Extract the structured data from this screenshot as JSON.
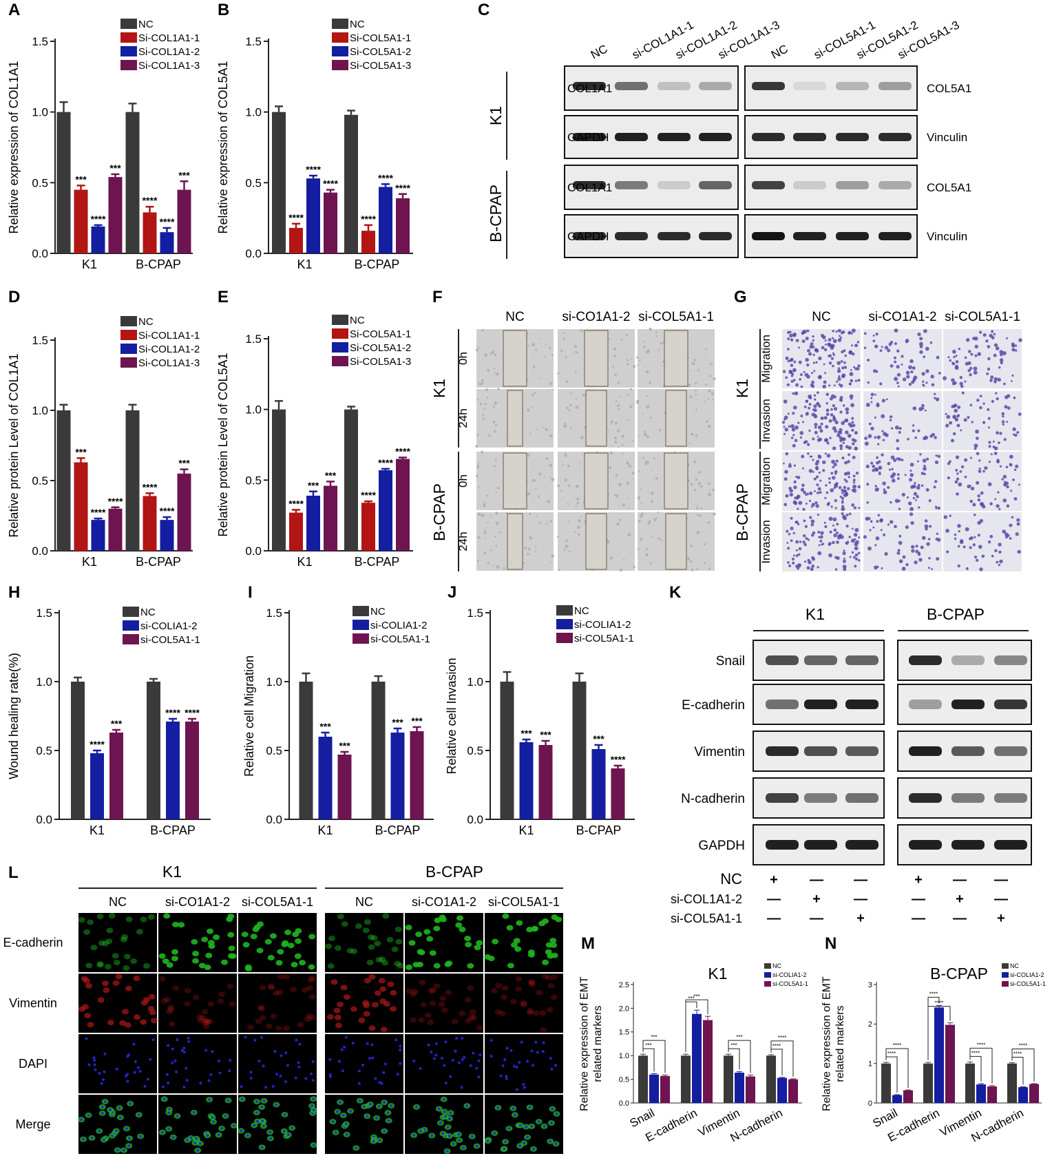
{
  "colors": {
    "nc": "#3a3a3a",
    "red": "#b31414",
    "blue": "#141ea0",
    "purple": "#6e1450",
    "bg_micro": "#cfcfcf",
    "fluor_green": "#1fb51f",
    "fluor_red": "#b01818",
    "fluor_blue": "#2828e0"
  },
  "panels": {
    "A": "A",
    "B": "B",
    "C": "C",
    "D": "D",
    "E": "E",
    "F": "F",
    "G": "G",
    "H": "H",
    "I": "I",
    "J": "J",
    "K": "K",
    "L": "L",
    "M": "M",
    "N": "N"
  },
  "chart_data": [
    {
      "id": "A",
      "type": "bar",
      "categories": [
        "K1",
        "B-CPAP"
      ],
      "ylabel": "Relative expression of COL1A1",
      "ylim": [
        0,
        1.5
      ],
      "yticks": [
        "0.0",
        "0.5",
        "1.0",
        "1.5"
      ],
      "ytick_values": [
        0,
        0.5,
        1.0,
        1.5
      ],
      "legend": "top-right",
      "series": [
        {
          "name": "NC",
          "color": "nc",
          "values": [
            1.0,
            1.0
          ],
          "err": [
            0.07,
            0.06
          ],
          "sig": [
            "",
            ""
          ]
        },
        {
          "name": "Si-COL1A1-1",
          "color": "red",
          "values": [
            0.45,
            0.29
          ],
          "err": [
            0.03,
            0.04
          ],
          "sig": [
            "***",
            "****"
          ]
        },
        {
          "name": "Si-COL1A1-2",
          "color": "blue",
          "values": [
            0.19,
            0.15
          ],
          "err": [
            0.01,
            0.03
          ],
          "sig": [
            "****",
            "****"
          ]
        },
        {
          "name": "Si-COL1A1-3",
          "color": "purple",
          "values": [
            0.54,
            0.45
          ],
          "err": [
            0.02,
            0.06
          ],
          "sig": [
            "***",
            "***"
          ]
        }
      ]
    },
    {
      "id": "B",
      "type": "bar",
      "categories": [
        "K1",
        "B-CPAP"
      ],
      "ylabel": "Relative expression of COL5A1",
      "ylim": [
        0,
        1.5
      ],
      "yticks": [
        "0.0",
        "0.5",
        "1.0",
        "1.5"
      ],
      "ytick_values": [
        0,
        0.5,
        1.0,
        1.5
      ],
      "legend": "top-right",
      "series": [
        {
          "name": "NC",
          "color": "nc",
          "values": [
            1.0,
            0.98
          ],
          "err": [
            0.04,
            0.03
          ],
          "sig": [
            "",
            ""
          ]
        },
        {
          "name": "Si-COL5A1-1",
          "color": "red",
          "values": [
            0.18,
            0.16
          ],
          "err": [
            0.03,
            0.04
          ],
          "sig": [
            "****",
            "****"
          ]
        },
        {
          "name": "Si-COL5A1-2",
          "color": "blue",
          "values": [
            0.53,
            0.47
          ],
          "err": [
            0.02,
            0.02
          ],
          "sig": [
            "****",
            "****"
          ]
        },
        {
          "name": "Si-COL5A1-3",
          "color": "purple",
          "values": [
            0.43,
            0.39
          ],
          "err": [
            0.02,
            0.03
          ],
          "sig": [
            "****",
            "****"
          ]
        }
      ]
    },
    {
      "id": "D",
      "type": "bar",
      "categories": [
        "K1",
        "B-CPAP"
      ],
      "ylabel": "Relative protein Level of COL1A1",
      "ylim": [
        0,
        1.5
      ],
      "yticks": [
        "0.0",
        "0.5",
        "1.0",
        "1.5"
      ],
      "ytick_values": [
        0,
        0.5,
        1.0,
        1.5
      ],
      "legend": "top-right",
      "series": [
        {
          "name": "NC",
          "color": "nc",
          "values": [
            1.0,
            1.0
          ],
          "err": [
            0.04,
            0.04
          ],
          "sig": [
            "",
            ""
          ]
        },
        {
          "name": "Si-COL1A1-1",
          "color": "red",
          "values": [
            0.63,
            0.39
          ],
          "err": [
            0.03,
            0.02
          ],
          "sig": [
            "***",
            "****"
          ]
        },
        {
          "name": "Si-COL1A1-2",
          "color": "blue",
          "values": [
            0.22,
            0.22
          ],
          "err": [
            0.01,
            0.02
          ],
          "sig": [
            "****",
            "****"
          ]
        },
        {
          "name": "Si-COL1A1-3",
          "color": "purple",
          "values": [
            0.3,
            0.55
          ],
          "err": [
            0.01,
            0.03
          ],
          "sig": [
            "****",
            "***"
          ]
        }
      ]
    },
    {
      "id": "E",
      "type": "bar",
      "categories": [
        "K1",
        "B-CPAP"
      ],
      "ylabel": "Relative protein Level of COL5A1",
      "ylim": [
        0,
        1.5
      ],
      "yticks": [
        "0.0",
        "0.5",
        "1.0",
        "1.5"
      ],
      "ytick_values": [
        0,
        0.5,
        1.0,
        1.5
      ],
      "legend": "top-right",
      "series": [
        {
          "name": "NC",
          "color": "nc",
          "values": [
            1.0,
            1.0
          ],
          "err": [
            0.06,
            0.02
          ],
          "sig": [
            "",
            ""
          ]
        },
        {
          "name": "Si-COL5A1-1",
          "color": "red",
          "values": [
            0.27,
            0.34
          ],
          "err": [
            0.02,
            0.01
          ],
          "sig": [
            "****",
            "****"
          ]
        },
        {
          "name": "Si-COL5A1-2",
          "color": "blue",
          "values": [
            0.39,
            0.57
          ],
          "err": [
            0.03,
            0.01
          ],
          "sig": [
            "***",
            "****"
          ]
        },
        {
          "name": "Si-COL5A1-3",
          "color": "purple",
          "values": [
            0.46,
            0.65
          ],
          "err": [
            0.03,
            0.01
          ],
          "sig": [
            "***",
            "****"
          ]
        }
      ]
    },
    {
      "id": "H",
      "type": "bar",
      "categories": [
        "K1",
        "B-CPAP"
      ],
      "ylabel": "Wound healing rate(%)",
      "ylim": [
        0,
        1.5
      ],
      "yticks": [
        "0.0",
        "0.5",
        "1.0",
        "1.5"
      ],
      "ytick_values": [
        0,
        0.5,
        1.0,
        1.5
      ],
      "legend": "top-right",
      "series": [
        {
          "name": "NC",
          "color": "nc",
          "values": [
            1.0,
            1.0
          ],
          "err": [
            0.03,
            0.02
          ],
          "sig": [
            "",
            ""
          ]
        },
        {
          "name": "si-COLIA1-2",
          "color": "blue",
          "values": [
            0.48,
            0.71
          ],
          "err": [
            0.02,
            0.02
          ],
          "sig": [
            "****",
            "****"
          ]
        },
        {
          "name": "si-COL5A1-1",
          "color": "purple",
          "values": [
            0.63,
            0.71
          ],
          "err": [
            0.02,
            0.02
          ],
          "sig": [
            "***",
            "****"
          ]
        }
      ]
    },
    {
      "id": "I",
      "type": "bar",
      "categories": [
        "K1",
        "B-CPAP"
      ],
      "ylabel": "Relative cell Migration",
      "ylim": [
        0,
        1.5
      ],
      "yticks": [
        "0.0",
        "0.5",
        "1.0",
        "1.5"
      ],
      "ytick_values": [
        0,
        0.5,
        1.0,
        1.5
      ],
      "legend": "top-right",
      "series": [
        {
          "name": "NC",
          "color": "nc",
          "values": [
            1.0,
            1.0
          ],
          "err": [
            0.06,
            0.04
          ],
          "sig": [
            "",
            ""
          ]
        },
        {
          "name": "si-COLIA1-2",
          "color": "blue",
          "values": [
            0.6,
            0.63
          ],
          "err": [
            0.03,
            0.03
          ],
          "sig": [
            "***",
            "***"
          ]
        },
        {
          "name": "si-COL5A1-1",
          "color": "purple",
          "values": [
            0.47,
            0.64
          ],
          "err": [
            0.02,
            0.03
          ],
          "sig": [
            "***",
            "***"
          ]
        }
      ]
    },
    {
      "id": "J",
      "type": "bar",
      "categories": [
        "K1",
        "B-CPAP"
      ],
      "ylabel": "Relative cell Invasion",
      "ylim": [
        0,
        1.5
      ],
      "yticks": [
        "0.0",
        "0.5",
        "1.0",
        "1.5"
      ],
      "ytick_values": [
        0,
        0.5,
        1.0,
        1.5
      ],
      "legend": "top-right",
      "series": [
        {
          "name": "NC",
          "color": "nc",
          "values": [
            1.0,
            1.0
          ],
          "err": [
            0.07,
            0.06
          ],
          "sig": [
            "",
            ""
          ]
        },
        {
          "name": "si-COLIA1-2",
          "color": "blue",
          "values": [
            0.56,
            0.51
          ],
          "err": [
            0.02,
            0.03
          ],
          "sig": [
            "***",
            "***"
          ]
        },
        {
          "name": "si-COL5A1-1",
          "color": "purple",
          "values": [
            0.54,
            0.37
          ],
          "err": [
            0.03,
            0.02
          ],
          "sig": [
            "***",
            "****"
          ]
        }
      ]
    },
    {
      "id": "M",
      "type": "bar",
      "title": "K1",
      "categories": [
        "Snail",
        "E-cadherin",
        "Vimentin",
        "N-cadherin"
      ],
      "ylabel": "Relative expression of EMT related markers",
      "ylim": [
        0,
        2.5
      ],
      "yticks": [
        "0.0",
        "0.5",
        "1.0",
        "1.5",
        "2.0",
        "2.5"
      ],
      "ytick_values": [
        0,
        0.5,
        1.0,
        1.5,
        2.0,
        2.5
      ],
      "legend": "top-right",
      "brackets": [
        "***",
        "***"
      ],
      "series": [
        {
          "name": "NC",
          "color": "nc",
          "values": [
            1.0,
            1.0,
            1.0,
            1.0
          ],
          "err": [
            0.03,
            0.03,
            0.03,
            0.02
          ]
        },
        {
          "name": "si-COLIA1-2",
          "color": "blue",
          "values": [
            0.6,
            1.88,
            0.64,
            0.53
          ],
          "err": [
            0.02,
            0.08,
            0.02,
            0.01
          ]
        },
        {
          "name": "si-COL5A1-1",
          "color": "purple",
          "values": [
            0.57,
            1.75,
            0.56,
            0.5
          ],
          "err": [
            0.02,
            0.08,
            0.03,
            0.01
          ]
        }
      ],
      "bracket_labels": [
        [
          "***",
          "***"
        ],
        [
          "***",
          "***"
        ],
        [
          "***",
          "***"
        ],
        [
          "****",
          "****"
        ]
      ]
    },
    {
      "id": "N",
      "type": "bar",
      "title": "B-CPAP",
      "categories": [
        "Snail",
        "E-cadherin",
        "Vimentin",
        "N-cadherin"
      ],
      "ylabel": "Relative expression of EMT related markers",
      "ylim": [
        0,
        3
      ],
      "yticks": [
        "0",
        "1",
        "2",
        "3"
      ],
      "ytick_values": [
        0,
        1,
        2,
        3
      ],
      "legend": "top-right",
      "series": [
        {
          "name": "NC",
          "color": "nc",
          "values": [
            1.0,
            1.0,
            1.0,
            1.0
          ],
          "err": [
            0.03,
            0.03,
            0.04,
            0.02
          ]
        },
        {
          "name": "si-COLIA1-2",
          "color": "blue",
          "values": [
            0.2,
            2.42,
            0.47,
            0.4
          ],
          "err": [
            0.01,
            0.05,
            0.02,
            0.01
          ]
        },
        {
          "name": "si-COL5A1-1",
          "color": "purple",
          "values": [
            0.32,
            1.98,
            0.42,
            0.48
          ],
          "err": [
            0.01,
            0.05,
            0.02,
            0.01
          ]
        }
      ],
      "bracket_labels": [
        [
          "****",
          "****"
        ],
        [
          "****",
          "****"
        ],
        [
          "****",
          "****"
        ],
        [
          "****",
          "****"
        ]
      ]
    }
  ],
  "C": {
    "lanes_left": [
      "NC",
      "si-COL1A1-1",
      "si-COL1A1-2",
      "si-COL1A1-3"
    ],
    "lanes_right": [
      "NC",
      "si-COL5A1-1",
      "si-COL5A1-2",
      "si-COL5A1-3"
    ],
    "cell_k1": "K1",
    "cell_bcpap": "B-CPAP",
    "rows_left": [
      "COL1A1",
      "GAPDH",
      "COL1A1",
      "GAPDH"
    ],
    "rows_right": [
      "COL5A1",
      "Vinculin",
      "COL5A1",
      "Vinculin"
    ],
    "intensity_left": [
      [
        0.9,
        0.6,
        0.25,
        0.35
      ],
      [
        0.95,
        0.95,
        0.95,
        0.95
      ],
      [
        0.9,
        0.55,
        0.2,
        0.65
      ],
      [
        0.9,
        0.9,
        0.9,
        0.9
      ]
    ],
    "intensity_right": [
      [
        0.85,
        0.15,
        0.3,
        0.4
      ],
      [
        0.9,
        0.9,
        0.9,
        0.9
      ],
      [
        0.8,
        0.2,
        0.4,
        0.35
      ],
      [
        1.0,
        0.95,
        0.95,
        0.95
      ]
    ]
  },
  "F": {
    "cols": [
      "NC",
      "si-CO1A1-2",
      "si-COL5A1-1"
    ],
    "cell_k1": "K1",
    "cell_bcpap": "B-CPAP",
    "times": [
      "0h",
      "24h",
      "0h",
      "24h"
    ]
  },
  "G": {
    "cols": [
      "NC",
      "si-CO1A1-2",
      "si-COL5A1-1"
    ],
    "cell_k1": "K1",
    "cell_bcpap": "B-CPAP",
    "rows": [
      "Migration",
      "Invasion",
      "Migration",
      "Invasion"
    ],
    "density": [
      [
        1.0,
        0.45,
        0.5
      ],
      [
        0.9,
        0.35,
        0.45
      ],
      [
        0.9,
        0.55,
        0.45
      ],
      [
        0.8,
        0.4,
        0.35
      ]
    ]
  },
  "K": {
    "cell_k1": "K1",
    "cell_bcpap": "B-CPAP",
    "rows": [
      "Snail",
      "E-cadherin",
      "Vimentin",
      "N-cadherin",
      "GAPDH"
    ],
    "conditions": [
      "NC",
      "si-COL1A1-2",
      "si-COL5A1-1"
    ],
    "signs": [
      [
        "+",
        "—",
        "—"
      ],
      [
        "—",
        "+",
        "—"
      ],
      [
        "—",
        "—",
        "+"
      ]
    ],
    "intensity_k1": [
      [
        0.75,
        0.65,
        0.65
      ],
      [
        0.6,
        0.95,
        0.95
      ],
      [
        0.9,
        0.75,
        0.7
      ],
      [
        0.8,
        0.55,
        0.6
      ],
      [
        0.95,
        0.95,
        0.95
      ]
    ],
    "intensity_bcpap": [
      [
        0.9,
        0.35,
        0.5
      ],
      [
        0.4,
        0.95,
        0.85
      ],
      [
        0.95,
        0.7,
        0.6
      ],
      [
        0.9,
        0.55,
        0.55
      ],
      [
        0.95,
        0.95,
        0.95
      ]
    ]
  },
  "L": {
    "cell_k1": "K1",
    "cell_bcpap": "B-CPAP",
    "cols": [
      "NC",
      "si-CO1A1-2",
      "si-COL5A1-1",
      "NC",
      "si-CO1A1-2",
      "si-COL5A1-1"
    ],
    "rows": [
      "E-cadherin",
      "Vimentin",
      "DAPI",
      "Merge"
    ]
  }
}
